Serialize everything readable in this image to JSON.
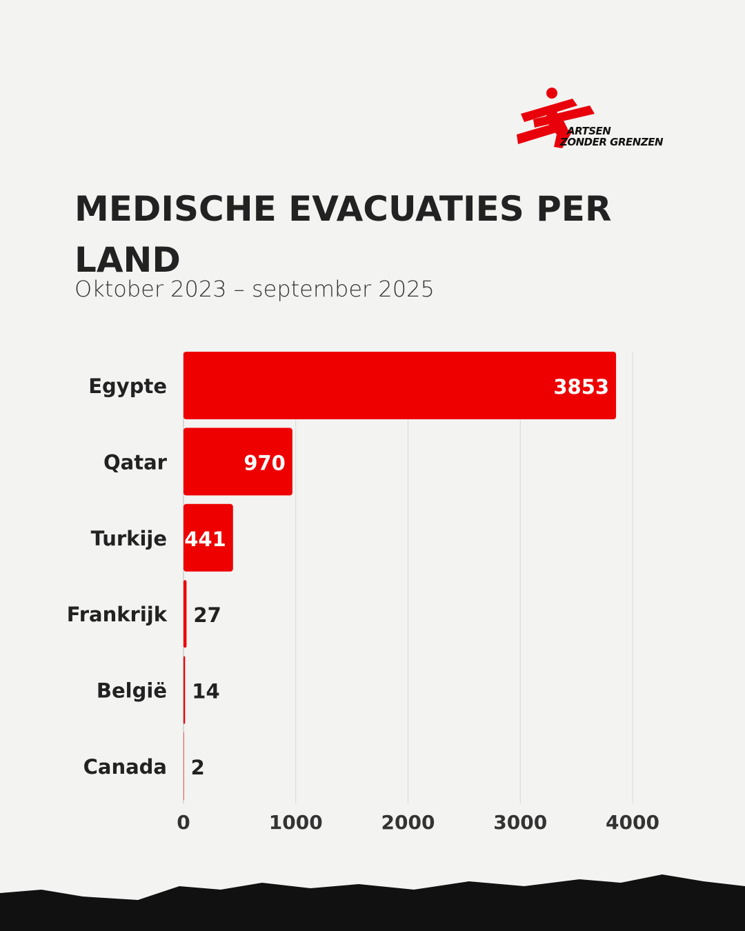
{
  "logo": {
    "line1": "ARTSEN",
    "line2": "ZONDER GRENZEN",
    "color": "#e8000b"
  },
  "chart_data": {
    "type": "bar",
    "orientation": "horizontal",
    "title": "MEDISCHE EVACUATIES PER LAND",
    "subtitle": "Oktober 2023 – september 2025",
    "categories": [
      "Egypte",
      "Qatar",
      "Turkije",
      "Frankrijk",
      "België",
      "Canada"
    ],
    "values": [
      3853,
      970,
      441,
      27,
      14,
      2
    ],
    "data_labels": [
      "3853",
      "970",
      "441",
      "27",
      "14",
      "2"
    ],
    "xlim": [
      0,
      4000
    ],
    "xticks": [
      0,
      1000,
      2000,
      3000,
      4000
    ],
    "xtick_labels": [
      "0",
      "1000",
      "2000",
      "3000",
      "4000"
    ],
    "xlabel": "",
    "ylabel": "",
    "grid": true,
    "bar_color": "#ee0000"
  }
}
